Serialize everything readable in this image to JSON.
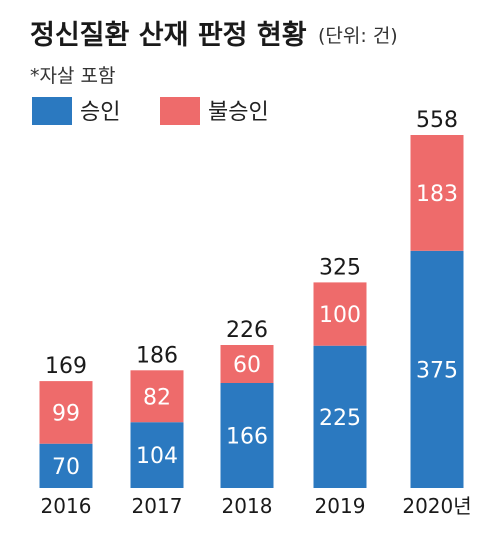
{
  "chart_data": {
    "type": "bar",
    "stacked": true,
    "title": "정신질환 산재 판정 현황",
    "unit": "(단위: 건)",
    "note": "*자살 포함",
    "categories": [
      "2016",
      "2017",
      "2018",
      "2019",
      "2020년"
    ],
    "series": [
      {
        "name": "승인",
        "color": "#2b79c0",
        "values": [
          70,
          104,
          166,
          225,
          375
        ]
      },
      {
        "name": "불승인",
        "color": "#ee6b6b",
        "values": [
          99,
          82,
          60,
          100,
          183
        ]
      }
    ],
    "totals": [
      169,
      186,
      226,
      325,
      558
    ],
    "ylim": [
      0,
      558
    ],
    "grid": false,
    "legend": "top-left"
  }
}
